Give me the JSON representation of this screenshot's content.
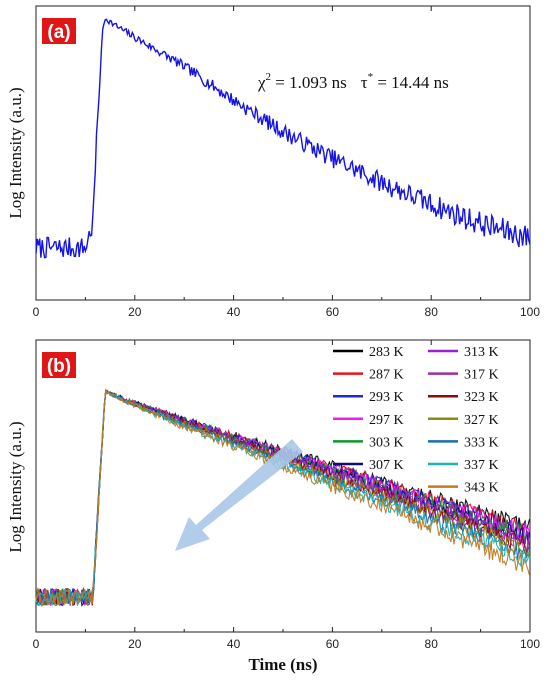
{
  "chart_data": [
    {
      "type": "line",
      "panel": "(a)",
      "ylabel": "Log Intensity (a.u.)",
      "xlabel": "",
      "xlim": [
        0,
        100
      ],
      "xticks": [
        "0",
        "20",
        "40",
        "60",
        "80",
        "100"
      ],
      "y_ticks_shown": false,
      "annotation": {
        "chi_symbol": "χ",
        "chi_sup": "2",
        "chi_rest": " = 1.093 ns",
        "tau_symbol": "τ",
        "tau_sup": "*",
        "tau_rest": " = 14.44 ns"
      },
      "series": [
        {
          "color": "#1414e6",
          "x": [
            0,
            5,
            10,
            11.5,
            12.5,
            13.5,
            14,
            16,
            20,
            25,
            30,
            40,
            50,
            60,
            70,
            80,
            90,
            100
          ],
          "y": [
            0.05,
            0.05,
            0.05,
            0.15,
            0.6,
            0.95,
            1.0,
            0.97,
            0.92,
            0.86,
            0.8,
            0.66,
            0.53,
            0.42,
            0.32,
            0.23,
            0.15,
            0.09
          ]
        }
      ]
    },
    {
      "type": "line",
      "panel": "(b)",
      "ylabel": "Log Intensity (a.u.)",
      "xlabel": "Time (ns)",
      "xlim": [
        0,
        100
      ],
      "xticks": [
        "0",
        "20",
        "40",
        "60",
        "80",
        "100"
      ],
      "y_ticks_shown": false,
      "legend_position": "top-right",
      "arrow": "decreasing lifetime with increasing temperature",
      "series": [
        {
          "name": "283 K",
          "color": "#000000",
          "slope": 0.56
        },
        {
          "name": "287 K",
          "color": "#e8151b",
          "slope": 0.57
        },
        {
          "name": "293 K",
          "color": "#1a2bd6",
          "slope": 0.575
        },
        {
          "name": "297 K",
          "color": "#f01ef0",
          "slope": 0.58
        },
        {
          "name": "303 K",
          "color": "#0f9a28",
          "slope": 0.59
        },
        {
          "name": "307 K",
          "color": "#0d0d7a",
          "slope": 0.6
        },
        {
          "name": "313 K",
          "color": "#9b1fd6",
          "slope": 0.61
        },
        {
          "name": "317 K",
          "color": "#a02da0",
          "slope": 0.62
        },
        {
          "name": "323 K",
          "color": "#8b0a0a",
          "slope": 0.63
        },
        {
          "name": "327 K",
          "color": "#8a8a0f",
          "slope": 0.64
        },
        {
          "name": "333 K",
          "color": "#1b6fae",
          "slope": 0.66
        },
        {
          "name": "337 K",
          "color": "#1fb2b2",
          "slope": 0.68
        },
        {
          "name": "343 K",
          "color": "#c07a24",
          "slope": 0.7
        }
      ]
    }
  ]
}
